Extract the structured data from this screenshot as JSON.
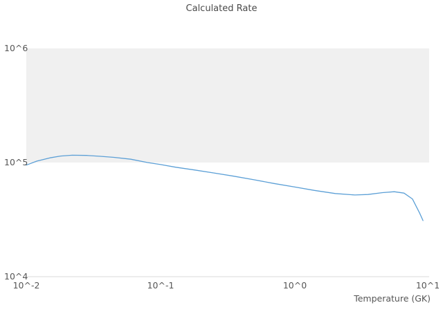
{
  "title": "Calculated Rate",
  "colors": {
    "line": "#5b9fd6",
    "band": "#f0f0f0",
    "baseline": "#d9d9d9",
    "text": "#555555"
  },
  "axes": {
    "x_label": "Temperature (GK)",
    "x_tick_labels": [
      "10^-2",
      "10^-1",
      "10^0",
      "10^1"
    ],
    "y_tick_labels": [
      "10^6",
      "10^5",
      "10^4"
    ]
  },
  "chart_data": {
    "type": "line",
    "title": "Calculated Rate",
    "xlabel": "Temperature (GK)",
    "ylabel": "",
    "x_scale": "log",
    "y_scale": "log",
    "xlim": [
      0.01,
      10
    ],
    "ylim": [
      10000,
      1000000
    ],
    "grid": false,
    "legend": "none",
    "shaded_band_y": [
      100000,
      1000000
    ],
    "x": [
      0.01,
      0.012,
      0.015,
      0.018,
      0.022,
      0.028,
      0.035,
      0.045,
      0.06,
      0.08,
      0.1,
      0.13,
      0.18,
      0.25,
      0.35,
      0.5,
      0.7,
      1.0,
      1.4,
      2.0,
      2.8,
      3.5,
      4.5,
      5.5,
      6.5,
      7.5,
      8.5,
      9.0
    ],
    "y": [
      95000,
      103000,
      110000,
      114000,
      116000,
      115500,
      113500,
      111000,
      107000,
      100000,
      96000,
      91000,
      86000,
      81000,
      76000,
      70500,
      65500,
      61000,
      57000,
      53500,
      52000,
      52500,
      54500,
      55500,
      54000,
      48000,
      36000,
      31000
    ]
  }
}
